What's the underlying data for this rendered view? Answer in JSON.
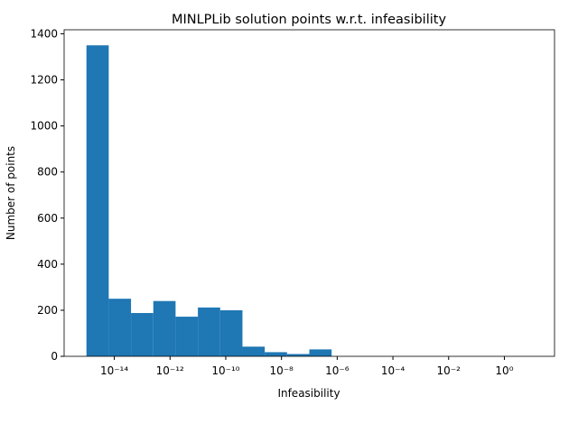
{
  "chart_data": {
    "type": "histogram",
    "title": "MINLPLib solution points w.r.t. infeasibility",
    "xlabel": "Infeasibility",
    "ylabel": "Number of points",
    "xscale": "log",
    "color": "#1f77b4",
    "bins": [
      1e-15,
      6.31e-15,
      3.98e-14,
      2.51e-13,
      1.58e-12,
      1e-11,
      6.31e-11,
      3.98e-10,
      2.51e-09,
      1.58e-08,
      1e-07,
      6.31e-07,
      3.98e-06,
      2.51e-05,
      0.000158,
      0.001,
      0.00631,
      0.0398,
      0.251,
      1.58,
      10
    ],
    "counts": [
      1350,
      250,
      188,
      240,
      172,
      212,
      200,
      42,
      18,
      10,
      30,
      0,
      0,
      0,
      0,
      0,
      0,
      0,
      0,
      0
    ],
    "xlim": [
      1.58e-16,
      63.1
    ],
    "xticks": [
      {
        "value": 1e-14,
        "label": "10⁻¹⁴"
      },
      {
        "value": 1e-12,
        "label": "10⁻¹²"
      },
      {
        "value": 1e-10,
        "label": "10⁻¹⁰"
      },
      {
        "value": 1e-08,
        "label": "10⁻⁸"
      },
      {
        "value": 1e-06,
        "label": "10⁻⁶"
      },
      {
        "value": 0.0001,
        "label": "10⁻⁴"
      },
      {
        "value": 0.01,
        "label": "10⁻²"
      },
      {
        "value": 1,
        "label": "10⁰"
      }
    ],
    "ylim": [
      0,
      1417.5
    ],
    "yticks": [
      0,
      200,
      400,
      600,
      800,
      1000,
      1200,
      1400
    ]
  }
}
